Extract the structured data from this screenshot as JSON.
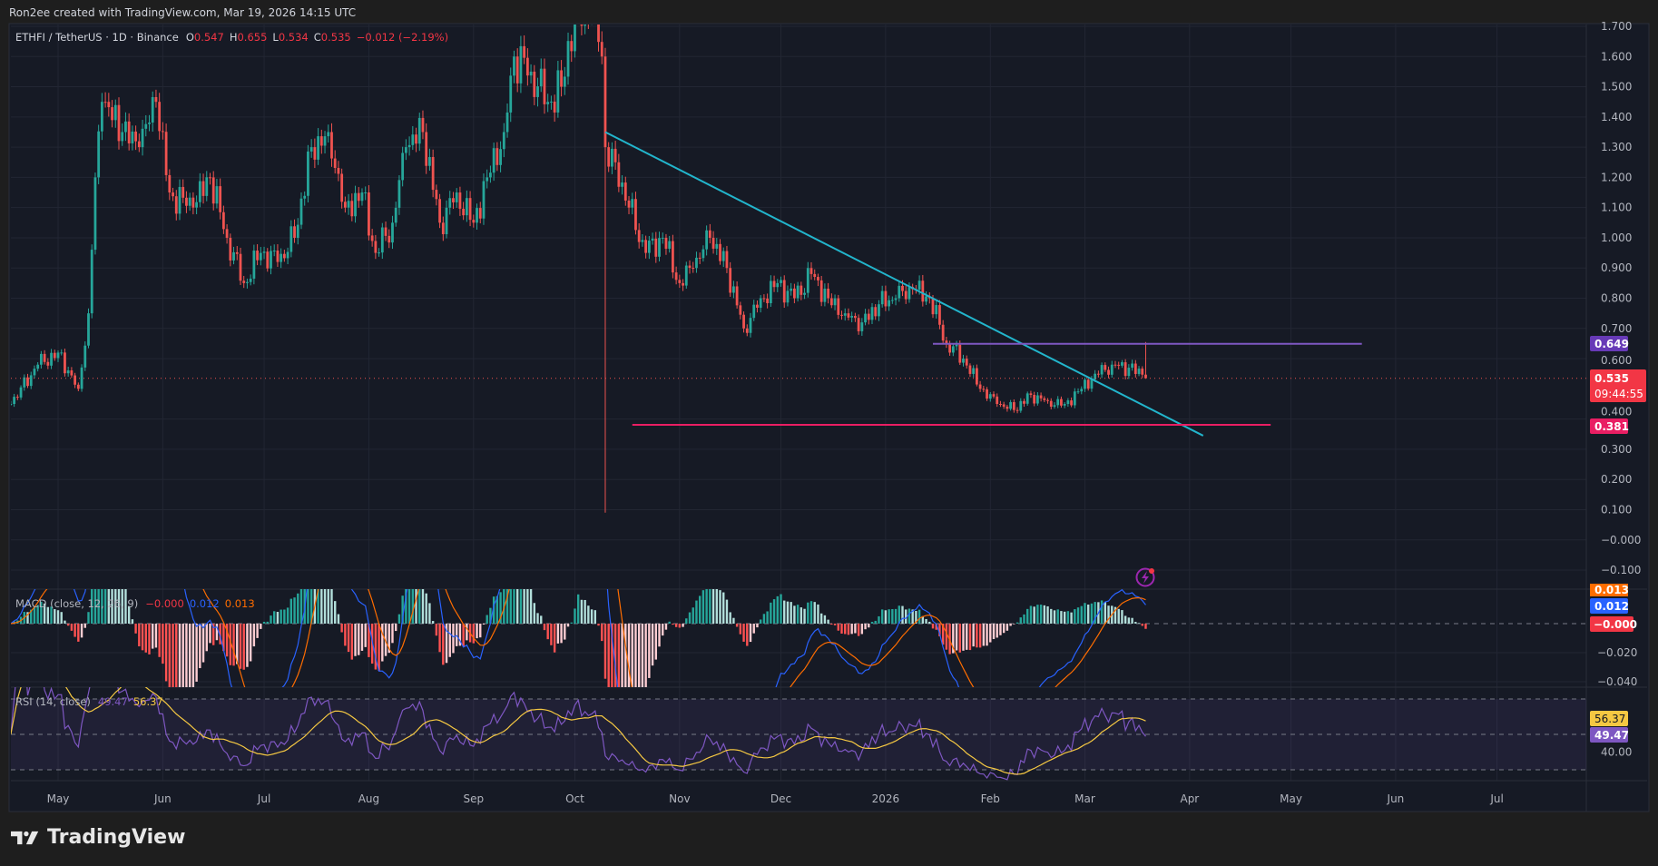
{
  "credit": "Ron2ee created with TradingView.com, Mar 19, 2026 14:15 UTC",
  "legend": {
    "symbol": "ETHFI / TetherUS · 1D · Binance",
    "o_label": "O",
    "o": "0.547",
    "h_label": "H",
    "h": "0.655",
    "l_label": "L",
    "l": "0.534",
    "c_label": "C",
    "c": "0.535",
    "change": "−0.012 (−2.19%)"
  },
  "macd_legend": {
    "title": "MACD (close, 12, 26, 9)",
    "hist": "−0.000",
    "macd": "0.012",
    "signal": "0.013"
  },
  "rsi_legend": {
    "title": "RSI (14, close)",
    "rsi": "49.47",
    "ma": "56.37"
  },
  "badges": {
    "resistance": "0.649",
    "last_price": "0.535",
    "countdown": "09:44:55",
    "support": "0.381",
    "macd_signal": "0.013",
    "macd_line": "0.012",
    "macd_hist": "−0.000",
    "rsi_ma": "56.37",
    "rsi": "49.47"
  },
  "colors": {
    "up": "#26a69a",
    "down": "#ef5350",
    "trendline": "#22b5cc",
    "resistance": "#7e57c2",
    "support": "#e91e63",
    "macd": "#2962ff",
    "signal": "#ff6d00",
    "rsi": "#7e57c2",
    "rsi_ma": "#f5c842",
    "background": "#161a25"
  },
  "logo": "TradingView",
  "chart_data": {
    "type": "candlestick",
    "symbol": "ETHFI/USDT",
    "interval": "1D",
    "price_ticks": [
      "1.700",
      "1.600",
      "1.500",
      "1.400",
      "1.300",
      "1.200",
      "1.100",
      "1.000",
      "0.900",
      "0.800",
      "0.700",
      "0.600",
      "0.400",
      "0.300",
      "0.200",
      "0.100",
      "−0.000",
      "−0.100"
    ],
    "price_tick_values": [
      1.7,
      1.6,
      1.5,
      1.4,
      1.3,
      1.2,
      1.1,
      1.0,
      0.9,
      0.8,
      0.7,
      0.6,
      0.4,
      0.3,
      0.2,
      0.1,
      0,
      -0.1
    ],
    "macd_ticks": [
      "−0.020",
      "−0.040"
    ],
    "macd_tick_values": [
      -0.02,
      -0.04
    ],
    "rsi_ticks": [
      "40.00"
    ],
    "rsi_tick_values": [
      40
    ],
    "time_ticks": [
      {
        "label": "May",
        "date": "2025-05-01"
      },
      {
        "label": "Jun",
        "date": "2025-06-01"
      },
      {
        "label": "Jul",
        "date": "2025-07-01"
      },
      {
        "label": "Aug",
        "date": "2025-08-01"
      },
      {
        "label": "Sep",
        "date": "2025-09-01"
      },
      {
        "label": "Oct",
        "date": "2025-10-01"
      },
      {
        "label": "Nov",
        "date": "2025-11-01"
      },
      {
        "label": "Dec",
        "date": "2025-12-01"
      },
      {
        "label": "2026",
        "date": "2026-01-01"
      },
      {
        "label": "Feb",
        "date": "2026-02-01"
      },
      {
        "label": "Mar",
        "date": "2026-03-01"
      },
      {
        "label": "Apr",
        "date": "2026-04-01"
      },
      {
        "label": "May",
        "date": "2026-05-01"
      },
      {
        "label": "Jun",
        "date": "2026-06-01"
      },
      {
        "label": "Jul",
        "date": "2026-07-01"
      }
    ],
    "approx_closes": [
      [
        "2025-04-17",
        0.45
      ],
      [
        "2025-04-25",
        0.58
      ],
      [
        "2025-05-01",
        0.62
      ],
      [
        "2025-05-07",
        0.5
      ],
      [
        "2025-05-10",
        0.75
      ],
      [
        "2025-05-12",
        1.2
      ],
      [
        "2025-05-14",
        1.45
      ],
      [
        "2025-05-20",
        1.35
      ],
      [
        "2025-05-25",
        1.3
      ],
      [
        "2025-05-30",
        1.45
      ],
      [
        "2025-06-03",
        1.15
      ],
      [
        "2025-06-10",
        1.1
      ],
      [
        "2025-06-15",
        1.2
      ],
      [
        "2025-06-20",
        1.0
      ],
      [
        "2025-06-25",
        0.85
      ],
      [
        "2025-06-30",
        0.95
      ],
      [
        "2025-07-05",
        0.92
      ],
      [
        "2025-07-10",
        1.0
      ],
      [
        "2025-07-15",
        1.3
      ],
      [
        "2025-07-20",
        1.35
      ],
      [
        "2025-07-25",
        1.1
      ],
      [
        "2025-07-30",
        1.15
      ],
      [
        "2025-08-03",
        0.95
      ],
      [
        "2025-08-08",
        1.05
      ],
      [
        "2025-08-12",
        1.3
      ],
      [
        "2025-08-17",
        1.35
      ],
      [
        "2025-08-22",
        1.05
      ],
      [
        "2025-08-27",
        1.15
      ],
      [
        "2025-09-01",
        1.05
      ],
      [
        "2025-09-05",
        1.2
      ],
      [
        "2025-09-10",
        1.35
      ],
      [
        "2025-09-13",
        1.6
      ],
      [
        "2025-09-18",
        1.55
      ],
      [
        "2025-09-23",
        1.45
      ],
      [
        "2025-09-27",
        1.5
      ],
      [
        "2025-10-01",
        1.75
      ],
      [
        "2025-10-06",
        1.75
      ],
      [
        "2025-10-09",
        1.6
      ],
      [
        "2025-10-10",
        1.3
      ],
      [
        "2025-10-13",
        1.25
      ],
      [
        "2025-10-17",
        1.1
      ],
      [
        "2025-10-22",
        0.95
      ],
      [
        "2025-10-27",
        1.0
      ],
      [
        "2025-11-01",
        0.85
      ],
      [
        "2025-11-05",
        0.9
      ],
      [
        "2025-11-10",
        1.0
      ],
      [
        "2025-11-15",
        0.9
      ],
      [
        "2025-11-20",
        0.7
      ],
      [
        "2025-11-25",
        0.8
      ],
      [
        "2025-11-30",
        0.85
      ],
      [
        "2025-12-05",
        0.8
      ],
      [
        "2025-12-10",
        0.88
      ],
      [
        "2025-12-15",
        0.8
      ],
      [
        "2025-12-20",
        0.75
      ],
      [
        "2025-12-25",
        0.72
      ],
      [
        "2025-12-30",
        0.78
      ],
      [
        "2026-01-04",
        0.8
      ],
      [
        "2026-01-09",
        0.83
      ],
      [
        "2026-01-14",
        0.8
      ],
      [
        "2026-01-19",
        0.65
      ],
      [
        "2026-01-24",
        0.6
      ],
      [
        "2026-01-29",
        0.5
      ],
      [
        "2026-02-03",
        0.45
      ],
      [
        "2026-02-08",
        0.43
      ],
      [
        "2026-02-13",
        0.48
      ],
      [
        "2026-02-18",
        0.46
      ],
      [
        "2026-02-23",
        0.45
      ],
      [
        "2026-02-28",
        0.5
      ],
      [
        "2026-03-04",
        0.55
      ],
      [
        "2026-03-09",
        0.58
      ],
      [
        "2026-03-14",
        0.57
      ],
      [
        "2026-03-18",
        0.547
      ],
      [
        "2026-03-19",
        0.535
      ]
    ],
    "last_candle": {
      "date": "2026-03-19",
      "open": 0.547,
      "high": 0.655,
      "low": 0.534,
      "close": 0.535
    },
    "crash_wick_low": {
      "date": "2025-10-10",
      "low": 0.09
    },
    "drawings": {
      "trendline": {
        "from": [
          "2025-10-10",
          1.35
        ],
        "to": [
          "2026-04-05",
          0.345
        ]
      },
      "resistance": {
        "price": 0.649,
        "from": "2026-01-15",
        "to": "2026-05-22"
      },
      "support": {
        "price": 0.381,
        "from": "2025-10-18",
        "to": "2026-04-25"
      }
    },
    "rsi_bands": [
      70,
      50,
      30
    ]
  }
}
